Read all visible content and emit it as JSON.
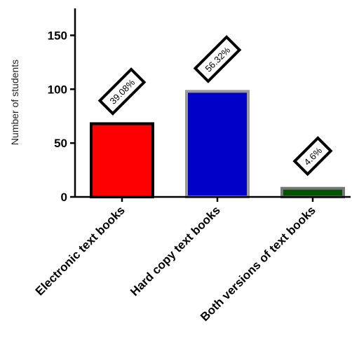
{
  "chart_data": {
    "type": "bar",
    "categories": [
      "Electronic text books",
      "Hard copy text books",
      "Both versions of text books"
    ],
    "values": [
      68,
      98,
      8
    ],
    "data_labels": [
      "39.08%",
      "56.32%",
      "4.6%"
    ],
    "colors": [
      "#ff0000",
      "#0000c8",
      "#005400"
    ],
    "outline_colors": [
      "#000000",
      "#9a9a9a",
      "#777777"
    ],
    "title": "",
    "xlabel": "",
    "ylabel": "Number of students",
    "ylim": [
      0,
      175
    ],
    "yticks": [
      0,
      50,
      100,
      150
    ],
    "grid": false,
    "legend": "none"
  }
}
